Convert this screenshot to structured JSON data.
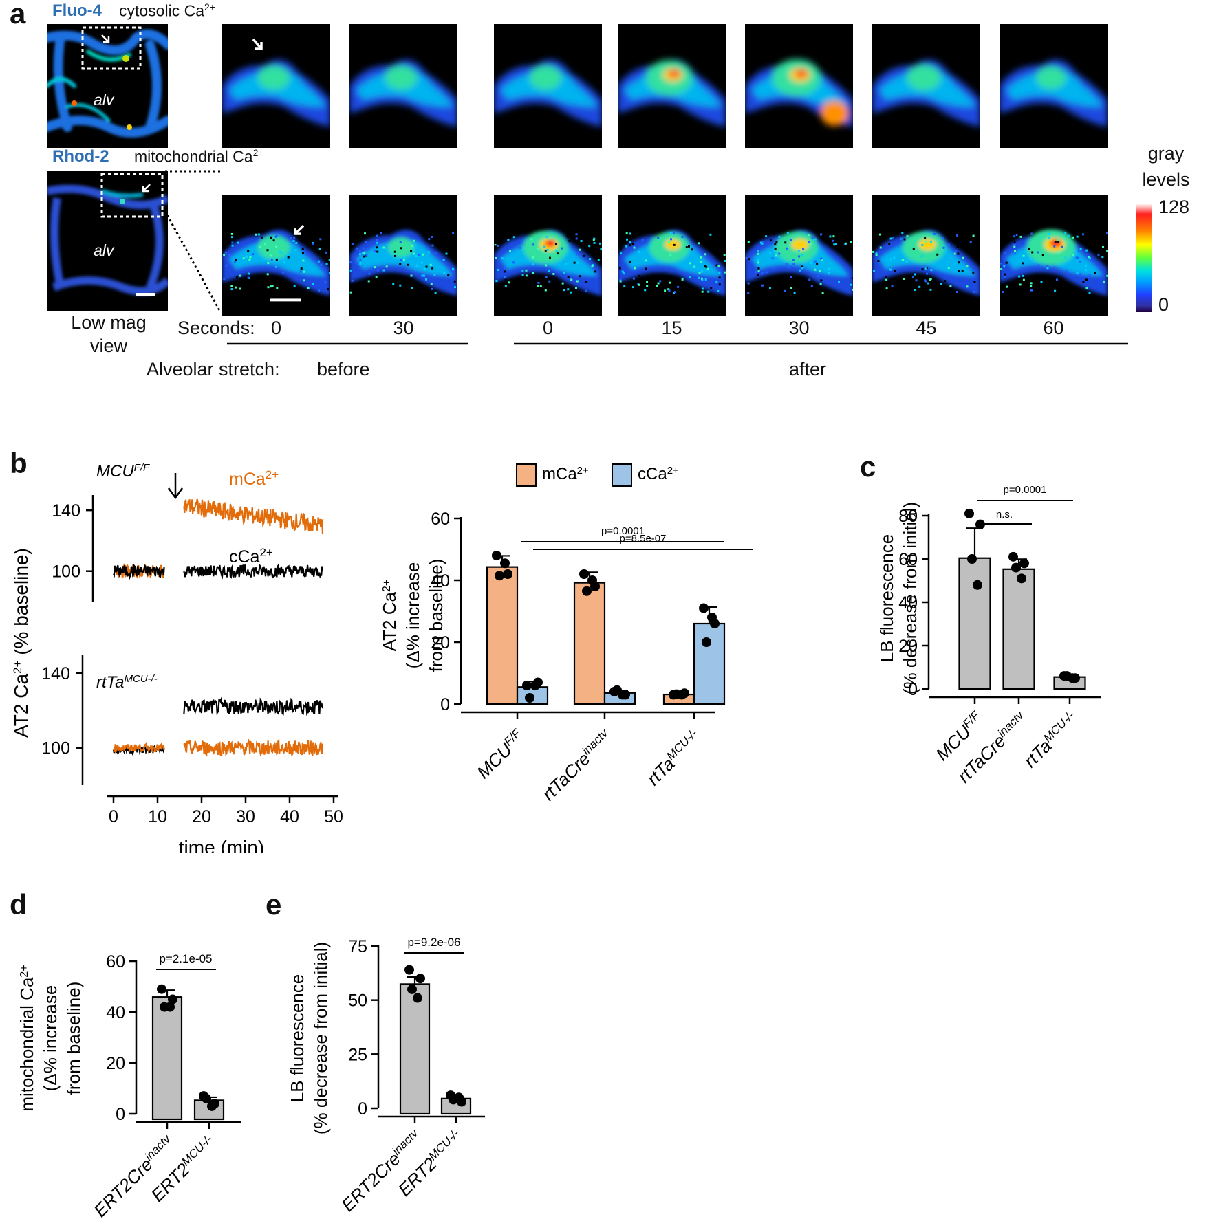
{
  "panels": {
    "a": "a",
    "b": "b",
    "c": "c",
    "d": "d",
    "e": "e"
  },
  "panel_a": {
    "row1_dye": "Fluo-4",
    "row1_desc": "cytosolic Ca",
    "row2_dye": "Rhod-2",
    "row2_desc": "mitochondrial Ca",
    "sup": "2+",
    "alv": "alv",
    "low_mag_line1": "Low mag",
    "low_mag_line2": "view",
    "seconds_label": "Seconds:",
    "seconds": [
      "0",
      "30",
      "0",
      "15",
      "30",
      "45",
      "60"
    ],
    "stretch_label": "Alveolar stretch:",
    "before": "before",
    "after": "after",
    "colorbar_title_1": "gray",
    "colorbar_title_2": "levels",
    "colorbar_max": "128",
    "colorbar_min": "0",
    "row1_intensity": [
      0.45,
      0.45,
      0.45,
      0.8,
      0.85,
      0.5,
      0.4
    ],
    "row2_intensity": [
      0.45,
      0.3,
      0.75,
      0.65,
      0.7,
      0.7,
      0.85
    ]
  },
  "chart_data": [
    {
      "id": "b_traces",
      "type": "line",
      "ylabel": "AT2 Ca",
      "ylabel_sup": "2+",
      "ylabel_suffix": " (% baseline)",
      "xlabel": "time (min)",
      "x_ticks": [
        "0",
        "10",
        "20",
        "30",
        "40",
        "50"
      ],
      "y_ticks": [
        "100",
        "140"
      ],
      "xlim": [
        0,
        50
      ],
      "top_panel": {
        "genotype": "MCU",
        "genotype_sup": "F/F",
        "ylim": [
          80,
          150
        ],
        "series": [
          {
            "name": "mCa",
            "name_sup": "2+",
            "color": "#e36c0a",
            "segments": [
              {
                "x": [
                  0,
                  11.5
                ],
                "mean": 100,
                "noise": 4
              },
              {
                "x": [
                  16,
                  47.5
                ],
                "mean_start": 143,
                "mean_end": 130,
                "noise": 6
              }
            ]
          },
          {
            "name": "cCa",
            "name_sup": "2+",
            "color": "#000000",
            "segments": [
              {
                "x": [
                  0,
                  11.5
                ],
                "mean": 100,
                "noise": 4
              },
              {
                "x": [
                  16,
                  47.5
                ],
                "mean": 100,
                "noise": 4
              }
            ]
          }
        ]
      },
      "bottom_panel": {
        "genotype": "rtTa",
        "genotype_sup": "MCU-/-",
        "ylim": [
          80,
          150
        ],
        "series": [
          {
            "name": "cCa",
            "color": "#000000",
            "segments": [
              {
                "x": [
                  0,
                  11.5
                ],
                "mean": 99,
                "noise": 2
              },
              {
                "x": [
                  16,
                  47.5
                ],
                "mean": 122,
                "noise": 4
              }
            ]
          },
          {
            "name": "mCa",
            "color": "#e36c0a",
            "segments": [
              {
                "x": [
                  0,
                  11.5
                ],
                "mean": 100,
                "noise": 2
              },
              {
                "x": [
                  16,
                  47.5
                ],
                "mean": 100,
                "noise": 4
              }
            ]
          }
        ]
      }
    },
    {
      "id": "b_bars",
      "type": "bar",
      "ylabel_line1": "AT2 Ca",
      "ylabel_sup": "2+",
      "ylabel_line2": "(Δ% increase",
      "ylabel_line3": "from baseline)",
      "ylim": [
        0,
        60
      ],
      "y_ticks": [
        "0",
        "20",
        "40",
        "60"
      ],
      "categories": [
        {
          "main": "MCU",
          "sup": "F/F"
        },
        {
          "main": "rtTaCre",
          "sup": "inactv"
        },
        {
          "main": "rtTa",
          "sup": "MCU-/-"
        }
      ],
      "series": [
        {
          "name": "mCa",
          "name_sup": "2+",
          "color": "#f4b183",
          "values": [
            44.3,
            39.2,
            3.1
          ],
          "errors": [
            3.6,
            3.4,
            1.0
          ],
          "points": [
            [
              48,
              42,
              41.5,
              45.5
            ],
            [
              42,
              38,
              36.5,
              40
            ],
            [
              3,
              3.5,
              3.2,
              3
            ]
          ]
        },
        {
          "name": "cCa",
          "name_sup": "2+",
          "color": "#9dc3e6",
          "values": [
            5.5,
            3.6,
            26
          ],
          "errors": [
            1.8,
            0.8,
            5.3
          ],
          "points": [
            [
              6,
              7,
              2,
              6
            ],
            [
              4,
              3,
              4.5,
              3
            ],
            [
              31,
              26,
              20,
              28
            ]
          ]
        }
      ],
      "comparisons": [
        {
          "label": "p=0.0001"
        },
        {
          "label": "p=8.5e-07"
        }
      ]
    },
    {
      "id": "c",
      "type": "bar",
      "ylabel_line1": "LB fluorescence",
      "ylabel_line2": "(% decrease from initial)",
      "ylim": [
        0,
        80
      ],
      "y_ticks": [
        "0",
        "20",
        "40",
        "60",
        "80"
      ],
      "categories": [
        {
          "main": "MCU",
          "sup": "F/F"
        },
        {
          "main": "rtTaCre",
          "sup": "inactv"
        },
        {
          "main": "rtTa",
          "sup": "MCU-/-"
        }
      ],
      "values": [
        60.4,
        55.3,
        5.5
      ],
      "errors": [
        13.8,
        4.6,
        0.8
      ],
      "points": [
        [
          81,
          76,
          60,
          48
        ],
        [
          61,
          58,
          56,
          51
        ],
        [
          6,
          5,
          6,
          5
        ]
      ],
      "color": "#bfbfbf",
      "comparisons": [
        {
          "label": "n.s."
        },
        {
          "label": "p=0.0001"
        }
      ]
    },
    {
      "id": "d",
      "type": "bar",
      "ylabel_line1": "mitochondrial Ca",
      "ylabel_sup": "2+",
      "ylabel_line2": "(Δ% increase",
      "ylabel_line3": "from baseline)",
      "ylim": [
        0,
        60
      ],
      "y_ticks": [
        "0",
        "20",
        "40",
        "60"
      ],
      "categories": [
        {
          "main": "ERT2Cre",
          "sup": "inactv"
        },
        {
          "main": "ERT2",
          "sup": "MCU-/-"
        }
      ],
      "values": [
        45.9,
        5.3
      ],
      "errors": [
        2.7,
        1.2
      ],
      "points": [
        [
          49,
          45,
          42,
          42
        ],
        [
          7,
          4,
          6,
          3
        ]
      ],
      "color": "#bfbfbf",
      "comparisons": [
        {
          "label": "p=2.1e-05"
        }
      ]
    },
    {
      "id": "e",
      "type": "bar",
      "ylabel_line1": "LB fluorescence",
      "ylabel_line2": "(% decrease from initial)",
      "ylim": [
        0,
        75
      ],
      "y_ticks": [
        "0",
        "25",
        "50",
        "75"
      ],
      "categories": [
        {
          "main": "ERT2Cre",
          "sup": "inactv"
        },
        {
          "main": "ERT2",
          "sup": "MCU-/-"
        }
      ],
      "values": [
        57.4,
        4.5
      ],
      "errors": [
        3.3,
        0.8
      ],
      "points": [
        [
          64,
          60,
          55,
          51
        ],
        [
          6,
          3,
          4,
          5
        ]
      ],
      "color": "#bfbfbf",
      "comparisons": [
        {
          "label": "p=9.2e-06"
        }
      ]
    }
  ]
}
